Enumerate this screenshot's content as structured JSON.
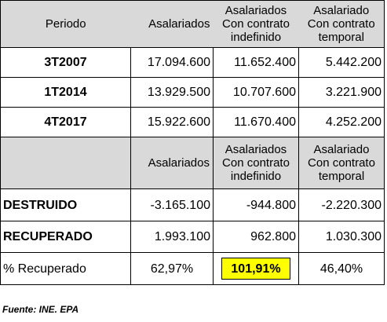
{
  "chart_data": {
    "type": "table",
    "section1": {
      "header": [
        "Periodo",
        "Asalariados",
        "Asalariados Con contrato indefinido",
        "Asalariado Con contrato temporal"
      ],
      "header_lines": {
        "periodo": "Periodo",
        "asal": "Asalariados",
        "indef": [
          "Asalariados",
          "Con contrato",
          "indefinido"
        ],
        "temp": [
          "Asalariado",
          "Con contrato",
          "temporal"
        ]
      },
      "rows": [
        {
          "label": "3T2007",
          "values": [
            "17.094.600",
            "11.652.400",
            "5.442.200"
          ]
        },
        {
          "label": "1T2014",
          "values": [
            "13.929.500",
            "10.707.600",
            "3.221.900"
          ]
        },
        {
          "label": "4T2017",
          "values": [
            "15.922.600",
            "11.670.400",
            "4.252.200"
          ]
        }
      ]
    },
    "section2": {
      "header_lines": {
        "asal": "Asalariados",
        "indef": [
          "Asalariados",
          "Con contrato",
          "indefinido"
        ],
        "temp": [
          "Asalariado",
          "Con contrato",
          "temporal"
        ]
      },
      "rows": [
        {
          "label": "DESTRUIDO",
          "values": [
            "-3.165.100",
            "-944.800",
            "-2.220.300"
          ]
        },
        {
          "label": "RECUPERADO",
          "values": [
            "1.993.100",
            "962.800",
            "1.030.300"
          ]
        },
        {
          "label": "% Recuperado",
          "values": [
            "62,97%",
            "101,91%",
            "46,40%"
          ]
        }
      ]
    },
    "highlight_color": "#ffff00",
    "header_color": "#d9d9d9"
  },
  "source_note": "Fuente: INE. EPA"
}
